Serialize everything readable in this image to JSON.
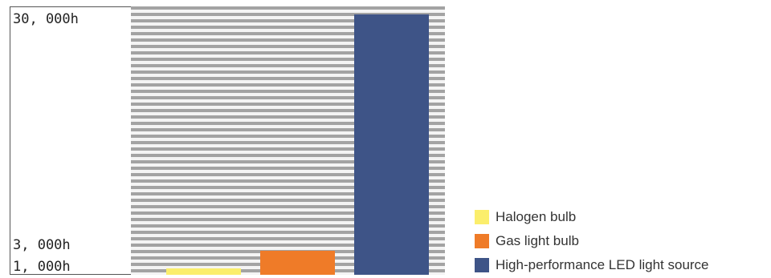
{
  "chart_data": {
    "type": "bar",
    "categories": [
      "Halogen bulb",
      "Gas light bulb",
      "High-performance LED light source"
    ],
    "values": [
      1000,
      3000,
      30000
    ],
    "colors": [
      "#fbee6c",
      "#ef7b28",
      "#3e5487"
    ],
    "ytick_labels": [
      "30, 000h",
      "3, 000h",
      "1, 000h"
    ],
    "ytick_values": [
      30000,
      3000,
      1000
    ],
    "grid": "horizontal stripes",
    "legend_position": "bottom-right"
  },
  "legend": {
    "items": [
      {
        "label": "Halogen bulb",
        "color": "#fbee6c",
        "icon": "yellow-swatch"
      },
      {
        "label": "Gas light bulb",
        "color": "#ef7b28",
        "icon": "orange-swatch"
      },
      {
        "label": "High-performance LED light source",
        "color": "#3e5487",
        "icon": "blue-swatch"
      }
    ]
  }
}
